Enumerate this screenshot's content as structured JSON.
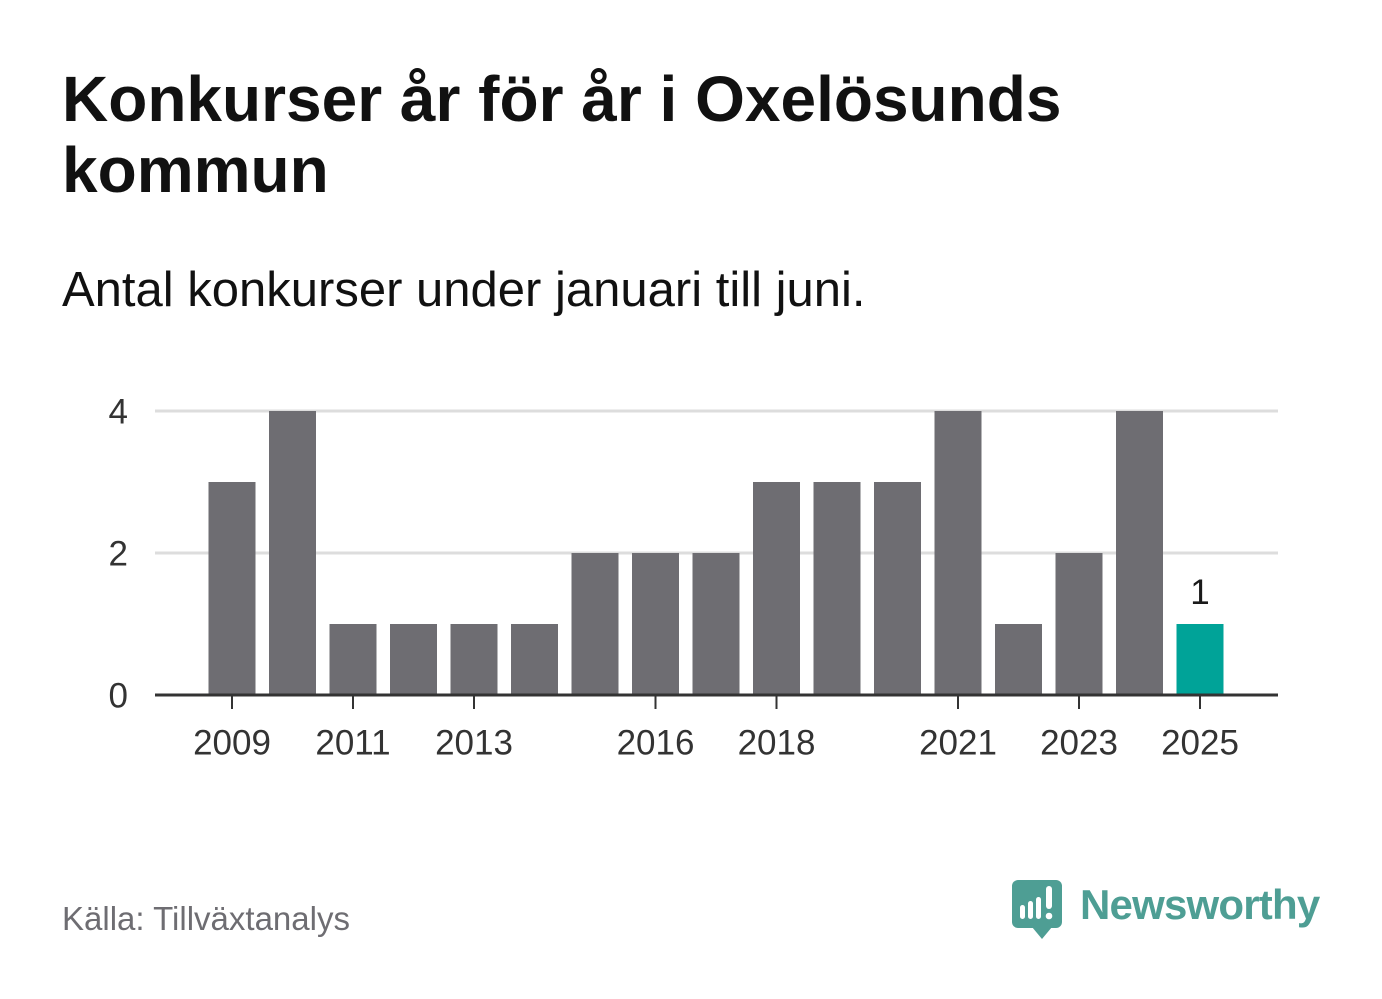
{
  "chart_data": {
    "type": "bar",
    "title": "Konkurser år för år i Oxelösunds kommun",
    "subtitle": "Antal konkurser under januari till juni.",
    "x": [
      2009,
      2010,
      2011,
      2012,
      2013,
      2014,
      2015,
      2016,
      2017,
      2018,
      2019,
      2020,
      2021,
      2022,
      2023,
      2024,
      2025
    ],
    "values": [
      3,
      4,
      1,
      1,
      1,
      1,
      2,
      2,
      2,
      3,
      3,
      3,
      4,
      1,
      2,
      4,
      1
    ],
    "xticks": [
      "2009",
      "2011",
      "2013",
      "2016",
      "2018",
      "2021",
      "2023",
      "2025"
    ],
    "yticks": [
      "0",
      "2",
      "4"
    ],
    "ylim": [
      0,
      4
    ],
    "grid": true,
    "bar_color": "#6e6d72",
    "highlight": {
      "x": 2025,
      "color": "#00a398",
      "label": "1"
    }
  },
  "footer": {
    "source": "Källa: Tillväxtanalys",
    "logo_text": "Newsworthy",
    "logo_color": "#4e9e94"
  }
}
